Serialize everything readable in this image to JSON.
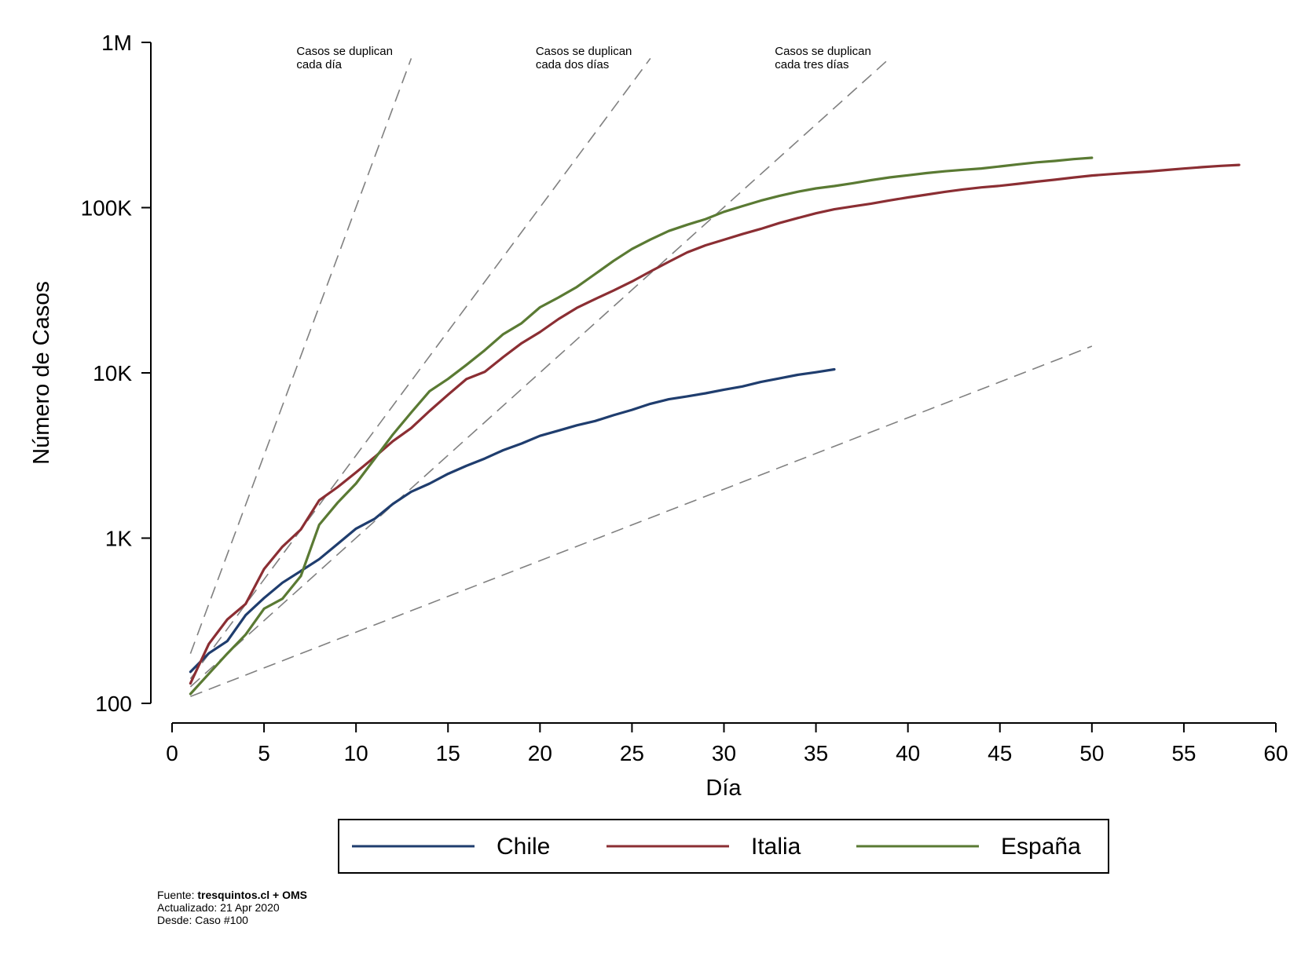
{
  "chart_data": {
    "type": "line",
    "xlabel": "Día",
    "ylabel": "Número de Casos",
    "xlim": [
      0,
      60
    ],
    "ylim": [
      100,
      1000000
    ],
    "yscale": "log",
    "xticks": [
      0,
      5,
      10,
      15,
      20,
      25,
      30,
      35,
      40,
      45,
      50,
      55,
      60
    ],
    "yticks": [
      {
        "value": 100,
        "label": "100"
      },
      {
        "value": 1000,
        "label": "1K"
      },
      {
        "value": 10000,
        "label": "10K"
      },
      {
        "value": 100000,
        "label": "100K"
      },
      {
        "value": 1000000,
        "label": "1M"
      }
    ],
    "grid": false,
    "legend_position": "bottom",
    "reference_lines": [
      {
        "label_line1": "Casos se duplican",
        "label_line2": "cada día",
        "x": [
          1,
          13
        ],
        "y": [
          200,
          800000
        ],
        "color": "#808080"
      },
      {
        "label_line1": "Casos se duplican",
        "label_line2": "cada dos días",
        "x": [
          1,
          26
        ],
        "y": [
          141,
          800000
        ],
        "color": "#808080"
      },
      {
        "label_line1": "Casos se duplican",
        "label_line2": "cada tres días",
        "x": [
          1,
          39
        ],
        "y": [
          126,
          800000
        ],
        "color": "#808080"
      },
      {
        "label_line1": "",
        "label_line2": "",
        "x": [
          1,
          50
        ],
        "y": [
          110,
          14500
        ],
        "color": "#808080"
      }
    ],
    "series": [
      {
        "name": "Chile",
        "color": "#1f3d6e",
        "x": [
          1,
          2,
          3,
          4,
          5,
          6,
          7,
          8,
          9,
          10,
          11,
          12,
          13,
          14,
          15,
          16,
          17,
          18,
          19,
          20,
          21,
          22,
          23,
          24,
          25,
          26,
          27,
          28,
          29,
          30,
          31,
          32,
          33,
          34,
          35,
          36
        ],
        "y": [
          155,
          201,
          238,
          342,
          434,
          537,
          632,
          746,
          922,
          1142,
          1306,
          1610,
          1909,
          2139,
          2449,
          2738,
          3031,
          3404,
          3737,
          4161,
          4471,
          4815,
          5116,
          5546,
          5972,
          6501,
          6927,
          7213,
          7525,
          7917,
          8273,
          8807,
          9252,
          9730,
          10088,
          10507
        ]
      },
      {
        "name": "Italia",
        "color": "#8b2e33",
        "x": [
          1,
          2,
          3,
          4,
          5,
          6,
          7,
          8,
          9,
          10,
          11,
          12,
          13,
          14,
          15,
          16,
          17,
          18,
          19,
          20,
          21,
          22,
          23,
          24,
          25,
          26,
          27,
          28,
          29,
          30,
          31,
          32,
          33,
          34,
          35,
          36,
          37,
          38,
          39,
          40,
          41,
          42,
          43,
          44,
          45,
          46,
          47,
          48,
          49,
          50,
          51,
          52,
          53,
          54,
          55,
          56,
          57,
          58
        ],
        "y": [
          132,
          229,
          322,
          400,
          650,
          888,
          1128,
          1694,
          2036,
          2502,
          3089,
          3858,
          4636,
          5883,
          7375,
          9172,
          10149,
          12462,
          15113,
          17660,
          21157,
          24747,
          27980,
          31506,
          35713,
          41035,
          47021,
          53578,
          59138,
          63927,
          69176,
          74386,
          80589,
          86498,
          92472,
          97689,
          101739,
          105792,
          110574,
          115242,
          119827,
          124632,
          128948,
          132547,
          135586,
          139422,
          143626,
          147577,
          152271,
          156363,
          159516,
          162488,
          165155,
          168941,
          172434,
          175925,
          178972,
          181228
        ]
      },
      {
        "name": "España",
        "color": "#5a7a33",
        "x": [
          1,
          2,
          3,
          4,
          5,
          6,
          7,
          8,
          9,
          10,
          11,
          12,
          13,
          14,
          15,
          16,
          17,
          18,
          19,
          20,
          21,
          22,
          23,
          24,
          25,
          26,
          27,
          28,
          29,
          30,
          31,
          32,
          33,
          34,
          35,
          36,
          37,
          38,
          39,
          40,
          41,
          42,
          43,
          44,
          45,
          46,
          47,
          48,
          49,
          50
        ],
        "y": [
          114,
          151,
          200,
          261,
          374,
          430,
          589,
          1204,
          1639,
          2140,
          3004,
          4231,
          5753,
          7753,
          9191,
          11178,
          13716,
          17147,
          19980,
          24926,
          28572,
          33089,
          39673,
          47610,
          56188,
          64059,
          72248,
          78797,
          85195,
          94417,
          102136,
          110238,
          117710,
          124736,
          130759,
          135032,
          140510,
          146690,
          152446,
          157022,
          161852,
          166019,
          169496,
          172541,
          177644,
          182816,
          188068,
          191726,
          196664,
          200210
        ]
      }
    ]
  },
  "footer": {
    "source_prefix": "Fuente: ",
    "source_bold": "tresquintos.cl + OMS",
    "updated": "Actualizado: 21 Apr 2020",
    "since": "Desde: Caso #100"
  }
}
